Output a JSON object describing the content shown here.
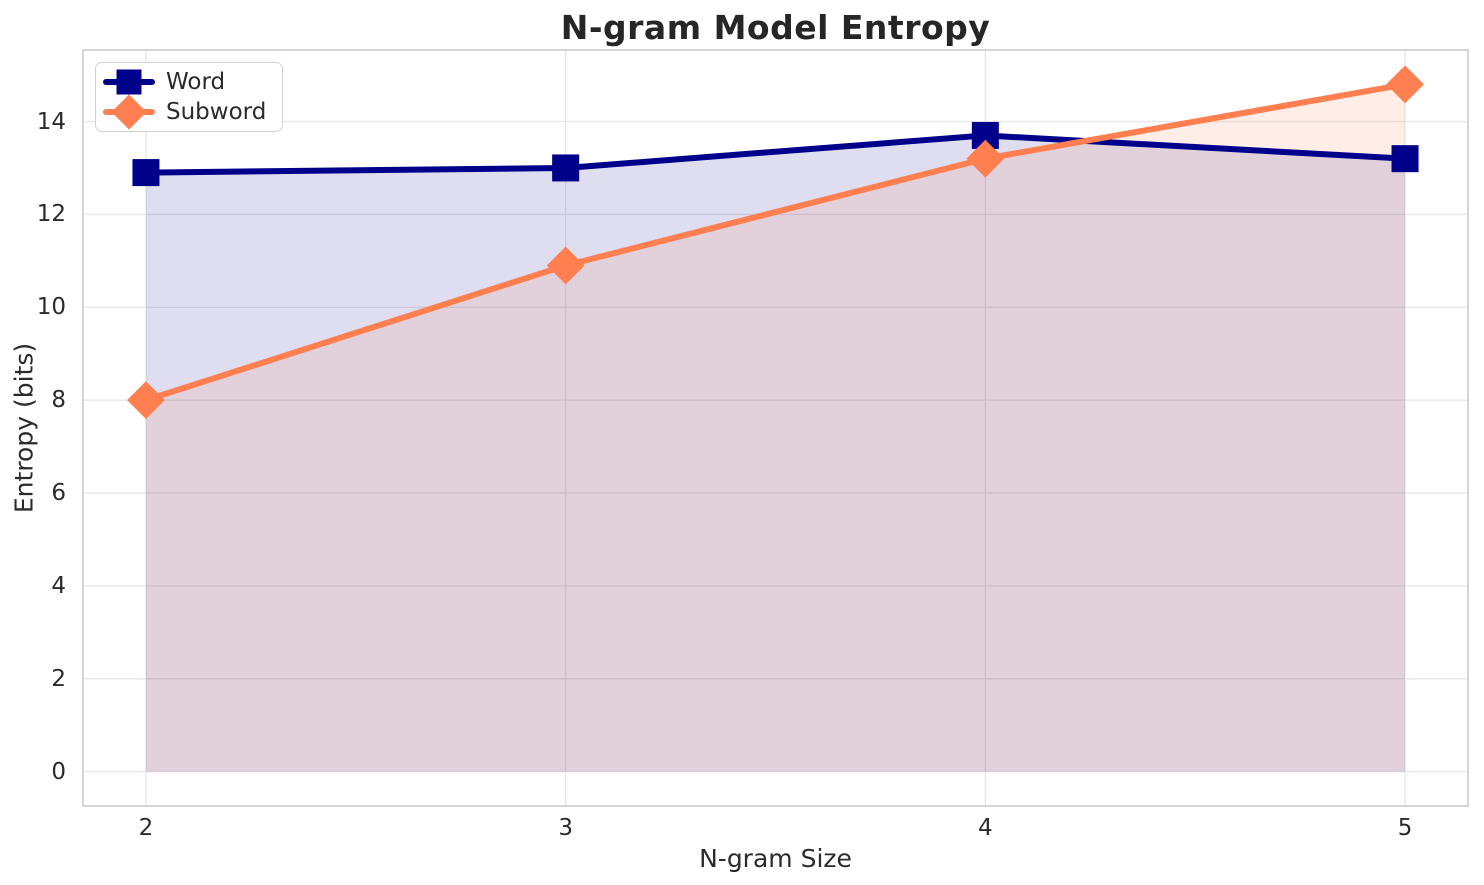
{
  "chart_data": {
    "type": "line",
    "title": "N-gram Model Entropy",
    "xlabel": "N-gram Size",
    "ylabel": "Entropy (bits)",
    "x": [
      2,
      3,
      4,
      5
    ],
    "series": [
      {
        "name": "Word",
        "color": "#00008B",
        "marker": "square",
        "values": [
          12.9,
          13.0,
          13.7,
          13.2
        ]
      },
      {
        "name": "Subword",
        "color": "#FF7F50",
        "marker": "diamond",
        "values": [
          8.0,
          10.9,
          13.2,
          14.8
        ]
      }
    ],
    "xtick_labels": [
      "2",
      "3",
      "4",
      "5"
    ],
    "xtick_values": [
      2,
      3,
      4,
      5
    ],
    "ytick_labels": [
      "0",
      "2",
      "4",
      "6",
      "8",
      "10",
      "12",
      "14"
    ],
    "ytick_values": [
      0,
      2,
      4,
      6,
      8,
      10,
      12,
      14
    ],
    "xlim": [
      1.85,
      5.15
    ],
    "ylim": [
      -0.74,
      15.54
    ],
    "grid": true,
    "legend_position": "upper left",
    "area_fill": true,
    "fill_alpha": 0.13,
    "fill_baseline": 0
  },
  "style": {
    "background": "#ffffff",
    "grid_color": "#e8e8e8",
    "spine_color": "#cccccc",
    "text_color": "#2b2b2b",
    "title_color": "#262626"
  }
}
